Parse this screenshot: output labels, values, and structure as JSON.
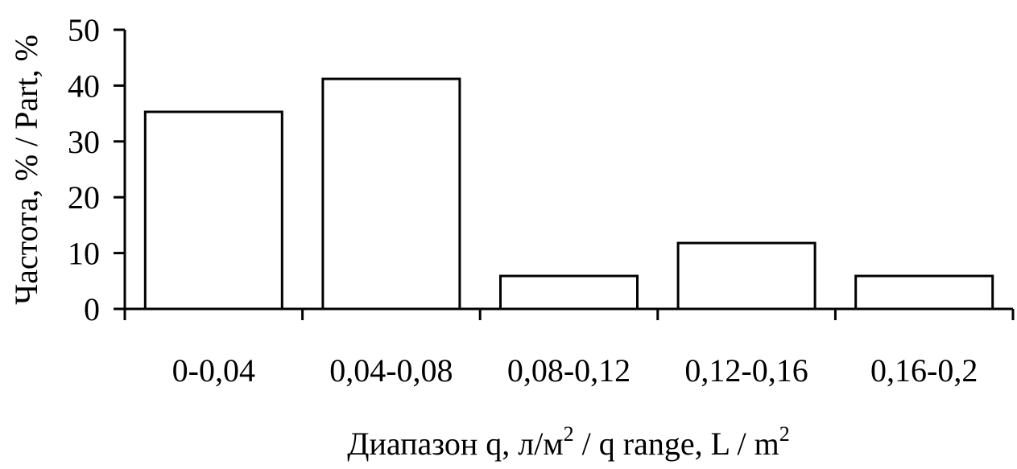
{
  "chart_data": {
    "type": "bar",
    "categories": [
      "0-0,04",
      "0,04-0,08",
      "0,08-0,12",
      "0,12-0,16",
      "0,16-0,2"
    ],
    "values": [
      35.3,
      41.2,
      5.9,
      11.8,
      5.9
    ],
    "ylabel": "Частота, % / Part, %",
    "xlabel_main": "Диапазон q, л/м",
    "xlabel_sup1": "2",
    "xlabel_mid": " / q range, L / m",
    "xlabel_sup2": "2",
    "ylim": [
      0,
      50
    ],
    "yticks": [
      "0",
      "10",
      "20",
      "30",
      "40",
      "50"
    ],
    "grid": false,
    "legend": "none",
    "colors": {
      "bar_fill": "#ffffff",
      "bar_stroke": "#000000",
      "axis": "#000000"
    }
  }
}
